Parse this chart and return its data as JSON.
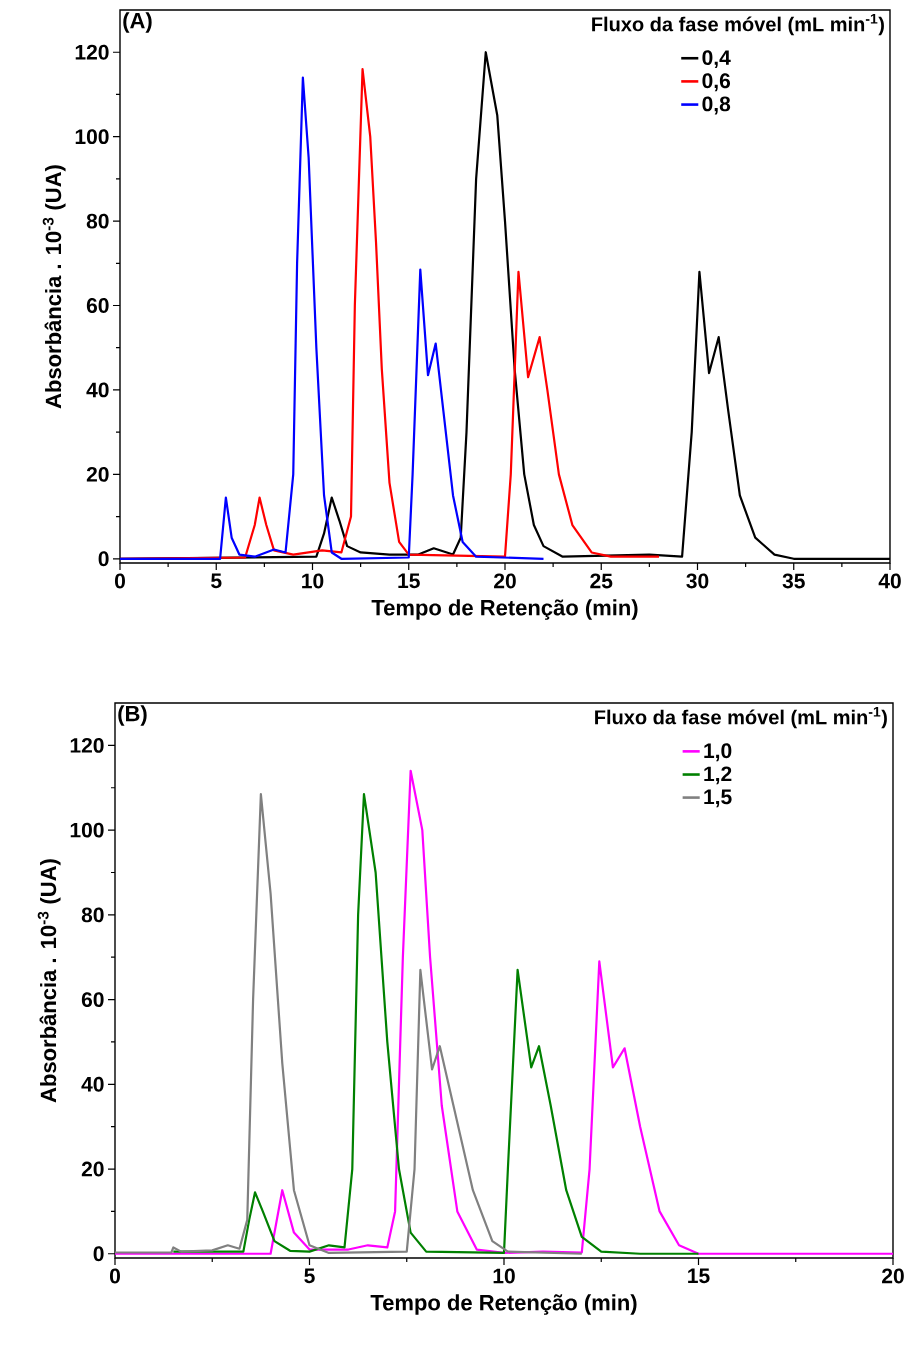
{
  "chart_data": [
    {
      "type": "line",
      "annotations": [
        "(A)"
      ],
      "xlabel": "Tempo de Retenção (min)",
      "ylabel": "Absorbância . 10$^{-3}$ (UA)",
      "legend_title": "Fluxo da fase móvel (mL min$^{-1}$)",
      "legend": "top right",
      "xlim": [
        0,
        40
      ],
      "ylim": [
        -1,
        130
      ],
      "xticks": [
        0,
        5,
        10,
        15,
        20,
        25,
        30,
        35,
        40
      ],
      "yticks": [
        0,
        20,
        40,
        60,
        80,
        100,
        120
      ],
      "series": [
        {
          "name": "0,4",
          "color": "#000000",
          "x": [
            0,
            10.2,
            10.6,
            11.0,
            11.4,
            11.8,
            12.5,
            14,
            15.5,
            16.3,
            17.3,
            17.7,
            18.0,
            18.5,
            19.0,
            19.6,
            20.0,
            20.5,
            21.0,
            21.5,
            22.0,
            23.0,
            27.5,
            29.2,
            29.7,
            30.1,
            30.6,
            31.1,
            31.6,
            32.2,
            33.0,
            34.0,
            35.0,
            40.0
          ],
          "values": [
            0,
            0.5,
            6,
            14.5,
            9,
            3,
            1.5,
            1,
            1,
            2.5,
            1,
            5,
            30,
            90,
            120,
            105,
            80,
            45,
            20,
            8,
            3,
            0.5,
            1,
            0.5,
            30,
            68,
            44,
            52.5,
            35,
            15,
            5,
            1,
            0,
            0
          ]
        },
        {
          "name": "0,6",
          "color": "#ff0000",
          "x": [
            0,
            6.5,
            7.0,
            7.25,
            7.6,
            8.0,
            9.0,
            10.5,
            11.5,
            12.0,
            12.2,
            12.6,
            13.0,
            13.3,
            13.6,
            14.0,
            14.5,
            15.0,
            20.0,
            20.3,
            20.7,
            21.2,
            21.8,
            22.2,
            22.8,
            23.5,
            24.5,
            25.5,
            28.0
          ],
          "values": [
            0,
            0.3,
            8,
            14.5,
            8,
            2,
            1,
            2,
            1.5,
            10,
            60,
            116,
            100,
            75,
            45,
            18,
            4,
            1,
            0.5,
            20,
            68,
            43,
            52.5,
            40,
            20,
            8,
            1.5,
            0.5,
            0.5
          ]
        },
        {
          "name": "0,8",
          "color": "#0000ff",
          "x": [
            0,
            5.2,
            5.5,
            5.8,
            6.2,
            7.0,
            8.0,
            8.6,
            9.0,
            9.2,
            9.5,
            9.8,
            10.2,
            10.6,
            11.0,
            11.5,
            15.0,
            15.2,
            15.6,
            16.0,
            16.4,
            16.8,
            17.3,
            17.8,
            18.5,
            22.0
          ],
          "values": [
            0,
            0,
            14.5,
            5,
            1,
            0.5,
            2.2,
            1.5,
            20,
            70,
            114,
            95,
            50,
            15,
            1.5,
            0,
            0.3,
            20,
            68.5,
            43.5,
            51,
            35,
            15,
            4,
            0.5,
            0
          ]
        }
      ]
    },
    {
      "type": "line",
      "annotations": [
        "(B)"
      ],
      "xlabel": "Tempo de Retenção (min)",
      "ylabel": "Absorbância . 10$^{-3}$ (UA)",
      "legend_title": "Fluxo da fase móvel (mL min$^{-1}$)",
      "legend": "top right",
      "xlim": [
        0,
        20
      ],
      "ylim": [
        -1,
        130
      ],
      "xticks": [
        0,
        5,
        10,
        15,
        20
      ],
      "yticks": [
        0,
        20,
        40,
        60,
        80,
        100,
        120
      ],
      "series": [
        {
          "name": "1,0",
          "color": "#ff00ff",
          "x": [
            0,
            4.0,
            4.3,
            4.6,
            5.0,
            6.0,
            6.5,
            7.0,
            7.2,
            7.4,
            7.6,
            7.9,
            8.1,
            8.4,
            8.8,
            9.3,
            10.0,
            11.0,
            12.0,
            12.2,
            12.45,
            12.8,
            13.1,
            13.5,
            14.0,
            14.5,
            15.0,
            20.0
          ],
          "values": [
            0,
            0,
            15,
            5,
            1,
            1,
            2,
            1.5,
            10,
            70,
            114,
            100,
            70,
            35,
            10,
            1,
            0.2,
            0.5,
            0.3,
            20,
            69,
            44,
            48.5,
            30,
            10,
            2,
            0,
            0
          ]
        },
        {
          "name": "1,2",
          "color": "#008000",
          "x": [
            1.5,
            3.3,
            3.45,
            3.6,
            3.8,
            4.1,
            4.5,
            5.0,
            5.5,
            5.9,
            6.1,
            6.25,
            6.4,
            6.7,
            7.0,
            7.3,
            7.6,
            8.0,
            10.0,
            10.1,
            10.35,
            10.7,
            10.9,
            11.2,
            11.6,
            12.0,
            12.5,
            13.5,
            15.0
          ],
          "values": [
            0.5,
            0.5,
            8,
            14.5,
            10,
            3,
            0.7,
            0.5,
            2,
            1.5,
            20,
            80,
            108.5,
            90,
            50,
            20,
            5,
            0.5,
            0.2,
            20,
            67,
            44,
            49,
            35,
            15,
            4,
            0.5,
            0,
            0
          ]
        },
        {
          "name": "1,5",
          "color": "#808080",
          "x": [
            0,
            1.45,
            1.5,
            1.7,
            2.5,
            2.9,
            3.2,
            3.4,
            3.55,
            3.75,
            4.0,
            4.3,
            4.6,
            5.0,
            5.5,
            7.5,
            7.7,
            7.85,
            8.15,
            8.35,
            8.7,
            9.2,
            9.7,
            10.1,
            12.0
          ],
          "values": [
            0.3,
            0.3,
            1.5,
            0.5,
            0.8,
            2,
            1.2,
            8,
            60,
            108.5,
            85,
            45,
            15,
            2,
            0.2,
            0.5,
            20,
            67,
            43.5,
            49,
            35,
            15,
            3,
            0.5,
            0
          ]
        }
      ]
    }
  ]
}
